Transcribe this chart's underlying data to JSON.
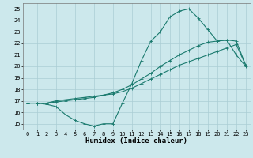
{
  "xlabel": "Humidex (Indice chaleur)",
  "xlim": [
    -0.5,
    23.5
  ],
  "ylim": [
    14.5,
    25.5
  ],
  "xticks": [
    0,
    1,
    2,
    3,
    4,
    5,
    6,
    7,
    8,
    9,
    10,
    11,
    12,
    13,
    14,
    15,
    16,
    17,
    18,
    19,
    20,
    21,
    22,
    23
  ],
  "yticks": [
    15,
    16,
    17,
    18,
    19,
    20,
    21,
    22,
    23,
    24,
    25
  ],
  "bg_color": "#cce8ec",
  "grid_color": "#aacdd4",
  "line_color": "#1a7a6e",
  "line1_y": [
    16.8,
    16.8,
    16.7,
    16.5,
    15.8,
    15.3,
    15.0,
    14.8,
    15.0,
    15.0,
    16.8,
    18.5,
    20.5,
    22.2,
    23.0,
    24.3,
    24.8,
    25.0,
    24.2,
    23.2,
    22.2,
    22.3,
    21.0,
    20.0
  ],
  "line2_y": [
    16.8,
    16.8,
    16.8,
    17.0,
    17.1,
    17.2,
    17.3,
    17.4,
    17.5,
    17.6,
    17.8,
    18.1,
    18.5,
    18.9,
    19.3,
    19.7,
    20.1,
    20.4,
    20.7,
    21.0,
    21.3,
    21.6,
    21.9,
    20.1
  ],
  "line3_y": [
    16.8,
    16.8,
    16.8,
    16.9,
    17.0,
    17.1,
    17.2,
    17.3,
    17.5,
    17.7,
    18.0,
    18.4,
    18.9,
    19.4,
    20.0,
    20.5,
    21.0,
    21.4,
    21.8,
    22.1,
    22.2,
    22.3,
    22.2,
    20.1
  ],
  "tick_fontsize": 5.0,
  "xlabel_fontsize": 6.5,
  "marker_size": 1.8,
  "line_width": 0.8
}
